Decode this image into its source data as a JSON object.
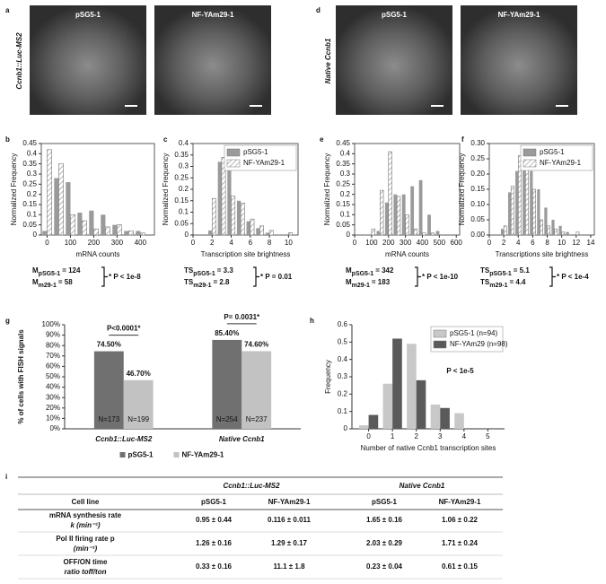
{
  "images": [
    {
      "panel": "a",
      "side_label": "Ccnb1::Luc-MS2",
      "titles": [
        "pSG5-1",
        "NF-YAm29-1"
      ]
    },
    {
      "panel": "d",
      "side_label": "Native Ccnb1",
      "titles": [
        "pSG5-1",
        "NF-YAm29-1"
      ]
    }
  ],
  "chart_data": [
    {
      "type": "bar",
      "panel": "b",
      "xlabel": "mRNA counts",
      "ylabel": "Normalized Frequency",
      "x": [
        0,
        50,
        100,
        150,
        200,
        250,
        300,
        350,
        400
      ],
      "series": [
        {
          "color": "#9a9a9a",
          "values": [
            0.02,
            0.28,
            0.26,
            0.11,
            0.12,
            0.1,
            0.05,
            0.02,
            0.02
          ]
        },
        {
          "color": "#ffffff",
          "pattern": "hatch",
          "values": [
            0.42,
            0.35,
            0.1,
            0.07,
            0.03,
            0.04,
            0.05,
            0.02,
            0.01
          ]
        }
      ],
      "xlim": [
        -25,
        460
      ],
      "xticks": [
        0,
        100,
        200,
        300,
        400
      ],
      "ylim": [
        0,
        0.45
      ],
      "yticks": [
        0,
        0.05,
        0.1,
        0.15,
        0.2,
        0.25,
        0.3,
        0.35,
        0.4,
        0.45
      ],
      "stats": {
        "lines": [
          {
            "sym": "M",
            "sub": "pSG5-1",
            "eq": "= 124"
          },
          {
            "sym": "M",
            "sub": "m29-1",
            "eq": "= 58"
          }
        ],
        "p": "* P < 1e-8"
      }
    },
    {
      "type": "bar",
      "panel": "c",
      "xlabel": "Transcription site brightness",
      "ylabel": "Normalized Frequency",
      "x": [
        2,
        3,
        4,
        5,
        6,
        7,
        8,
        9,
        10
      ],
      "series": [
        {
          "name": "pSG5-1",
          "color": "#9a9a9a",
          "values": [
            0.02,
            0.32,
            0.38,
            0.15,
            0.06,
            0.03,
            0.01,
            0,
            0
          ]
        },
        {
          "name": "NF-YAm29-1",
          "color": "#ffffff",
          "pattern": "hatch",
          "values": [
            0.16,
            0.34,
            0.17,
            0.14,
            0.07,
            0.04,
            0.02,
            0,
            0.01
          ]
        }
      ],
      "xlim": [
        0,
        11
      ],
      "xticks": [
        0,
        2,
        4,
        6,
        8,
        10
      ],
      "ylim": [
        0,
        0.4
      ],
      "yticks": [
        0,
        0.05,
        0.1,
        0.15,
        0.2,
        0.25,
        0.3,
        0.35,
        0.4
      ],
      "legend": "upper right",
      "stats": {
        "lines": [
          {
            "sym": "TS",
            "sub": "pSG5-1",
            "eq": "= 3.3"
          },
          {
            "sym": "TS",
            "sub": "m29-1",
            "eq": "= 2.8"
          }
        ],
        "p": "* P = 0.01"
      }
    },
    {
      "type": "bar",
      "panel": "e",
      "xlabel": "mRNA counts",
      "ylabel": "Normalized Frequency",
      "x": [
        100,
        150,
        200,
        250,
        300,
        350,
        400,
        450,
        500
      ],
      "series": [
        {
          "color": "#9a9a9a",
          "values": [
            0,
            0.02,
            0.16,
            0.2,
            0.2,
            0.24,
            0.27,
            0.1,
            0.02
          ]
        },
        {
          "color": "#ffffff",
          "pattern": "hatch",
          "values": [
            0.03,
            0.22,
            0.41,
            0.19,
            0.1,
            0.03,
            0.01,
            0.01,
            0
          ]
        }
      ],
      "xlim": [
        0,
        620
      ],
      "xticks": [
        0,
        100,
        200,
        300,
        400,
        500,
        600
      ],
      "ylim": [
        0,
        0.45
      ],
      "yticks": [
        0,
        0.05,
        0.1,
        0.15,
        0.2,
        0.25,
        0.3,
        0.35,
        0.4,
        0.45
      ],
      "stats": {
        "lines": [
          {
            "sym": "M",
            "sub": "pSG5-1",
            "eq": "= 342"
          },
          {
            "sym": "M",
            "sub": "m29-1",
            "eq": "= 183"
          }
        ],
        "p": "* P < 1e-10"
      }
    },
    {
      "type": "bar",
      "panel": "f",
      "xlabel": "Transcriptions site brightness",
      "ylabel": "Normalized Frequency",
      "x": [
        2,
        3,
        4,
        5,
        6,
        7,
        8,
        9,
        10,
        11,
        12
      ],
      "series": [
        {
          "name": "pSG5-1",
          "color": "#9a9a9a",
          "values": [
            0.02,
            0.14,
            0.21,
            0.28,
            0.21,
            0.15,
            0.09,
            0.05,
            0.03,
            0.01,
            0
          ]
        },
        {
          "name": "NF-YAm29-1",
          "color": "#ffffff",
          "pattern": "hatch",
          "values": [
            0.03,
            0.16,
            0.26,
            0.29,
            0.15,
            0.05,
            0.03,
            0.02,
            0.01,
            0,
            0.01
          ]
        }
      ],
      "xlim": [
        0,
        14.5
      ],
      "xticks": [
        0,
        2,
        4,
        6,
        8,
        10,
        12,
        14
      ],
      "ylim": [
        0,
        0.3
      ],
      "yticks": [
        {
          "value": 0,
          "label": "0.00"
        },
        {
          "value": 0.05,
          "label": "0.05"
        },
        {
          "value": 0.1,
          "label": "0.10"
        },
        {
          "value": 0.15,
          "label": "0.15"
        },
        {
          "value": 0.2,
          "label": "0.20"
        },
        {
          "value": 0.25,
          "label": "0.25"
        },
        {
          "value": 0.3,
          "label": "0.30"
        }
      ],
      "legend": "upper right",
      "stats": {
        "lines": [
          {
            "sym": "TS",
            "sub": "pSG5-1",
            "eq": "= 5.1"
          },
          {
            "sym": "TS",
            "sub": "m29-1",
            "eq": "= 4.4"
          }
        ],
        "p": "* P < 1e-4"
      }
    },
    {
      "type": "bar",
      "panel": "g",
      "ylabel": "% of cells with FISH signals",
      "categories": [
        "Ccnb1::Luc-MS2",
        "Native Ccnb1"
      ],
      "series": [
        {
          "name": "pSG5-1",
          "color": "#707070",
          "values": [
            74.5,
            85.4
          ],
          "value_labels": [
            "74.50%",
            "85.40%"
          ],
          "n_labels": [
            "N=173",
            "N=254"
          ]
        },
        {
          "name": "NF-YAm29-1",
          "color": "#c2c2c2",
          "values": [
            46.7,
            74.6
          ],
          "value_labels": [
            "46.70%",
            "74.60%"
          ],
          "n_labels": [
            "N=199",
            "N=237"
          ]
        }
      ],
      "comparisons": [
        "P<0.0001*",
        "P= 0.0031*"
      ],
      "ylim": [
        0,
        100
      ],
      "yticks": [
        {
          "value": 0,
          "label": "0%"
        },
        {
          "value": 10,
          "label": "10%"
        },
        {
          "value": 20,
          "label": "20%"
        },
        {
          "value": 30,
          "label": "30%"
        },
        {
          "value": 40,
          "label": "40%"
        },
        {
          "value": 50,
          "label": "50%"
        },
        {
          "value": 60,
          "label": "60%"
        },
        {
          "value": 70,
          "label": "70%"
        },
        {
          "value": 80,
          "label": "80%"
        },
        {
          "value": 90,
          "label": "90%"
        },
        {
          "value": 100,
          "label": "100%"
        }
      ],
      "legend": "bottom"
    },
    {
      "type": "bar",
      "panel": "h",
      "xlabel": "Number of native Ccnb1 transcription sites",
      "ylabel": "Frequency",
      "x": [
        0,
        1,
        2,
        3,
        4,
        5
      ],
      "series": [
        {
          "name": "pSG5-1 (n=94)",
          "color": "#c8c8c8",
          "values": [
            0.02,
            0.26,
            0.49,
            0.14,
            0.09,
            0
          ]
        },
        {
          "name": "NF-YAm29 (n=98)",
          "color": "#5a5a5a",
          "values": [
            0.08,
            0.52,
            0.28,
            0.12,
            0,
            0
          ]
        }
      ],
      "xlim": [
        -0.7,
        5.7
      ],
      "xticks": [
        0,
        1,
        2,
        3,
        4,
        5
      ],
      "ylim": [
        0,
        0.6
      ],
      "yticks": [
        0,
        0.1,
        0.2,
        0.3,
        0.4,
        0.5,
        0.6
      ],
      "legend": "upper right",
      "annotation": "P < 1e-5"
    }
  ],
  "table": {
    "panel": "i",
    "groups": [
      "Ccnb1::Luc-MS2",
      "Native Ccnb1"
    ],
    "header": [
      "Cell line",
      "pSG5-1",
      "NF-YAm29-1",
      "pSG5-1",
      "NF-YAm29-1"
    ],
    "rows": [
      {
        "label": [
          "mRNA synthesis rate",
          "k (min⁻¹)"
        ],
        "cells": [
          "0.95 ± 0.44",
          "0.116 ± 0.011",
          "1.65 ± 0.16",
          "1.06 ± 0.22"
        ]
      },
      {
        "label": [
          "Pol II firing rate p",
          "(min⁻¹)"
        ],
        "cells": [
          "1.26 ± 0.16",
          "1.29 ± 0.17",
          "2.03 ± 0.29",
          "1.71 ± 0.24"
        ]
      },
      {
        "label": [
          "OFF/ON time",
          "ratio toff/ton"
        ],
        "cells": [
          "0.33 ± 0.16",
          "11.1 ± 1.8",
          "0.23 ± 0.04",
          "0.61 ± 0.15"
        ]
      }
    ]
  }
}
